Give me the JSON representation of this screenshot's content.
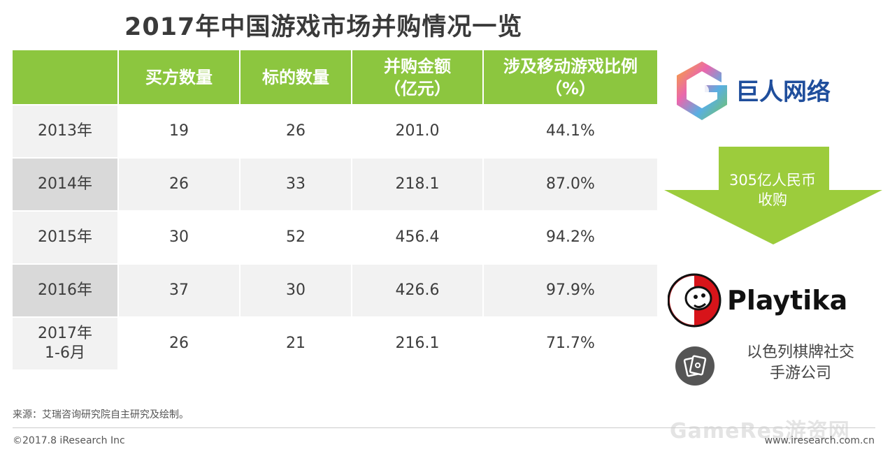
{
  "title": "2017年中国游戏市场并购情况一览",
  "table": {
    "headers": [
      {
        "line1": "",
        "line2": ""
      },
      {
        "line1": "买方数量",
        "line2": ""
      },
      {
        "line1": "标的数量",
        "line2": ""
      },
      {
        "line1": "并购金额",
        "line2": "（亿元）"
      },
      {
        "line1": "涉及移动游戏比例",
        "line2": "（%）"
      }
    ],
    "rows": [
      {
        "year": "2013年",
        "year2": "",
        "buyers": "19",
        "targets": "26",
        "amount": "201.0",
        "mobile_pct": "44.1%"
      },
      {
        "year": "2014年",
        "year2": "",
        "buyers": "26",
        "targets": "33",
        "amount": "218.1",
        "mobile_pct": "87.0%"
      },
      {
        "year": "2015年",
        "year2": "",
        "buyers": "30",
        "targets": "52",
        "amount": "456.4",
        "mobile_pct": "94.2%"
      },
      {
        "year": "2016年",
        "year2": "",
        "buyers": "37",
        "targets": "30",
        "amount": "426.6",
        "mobile_pct": "97.9%"
      },
      {
        "year": "2017年",
        "year2": "1-6月",
        "buyers": "26",
        "targets": "21",
        "amount": "216.1",
        "mobile_pct": "71.7%"
      }
    ]
  },
  "acquirer": {
    "name": "巨人网络"
  },
  "deal": {
    "line1": "305亿人民币",
    "line2": "收购"
  },
  "target": {
    "name": "Playtika",
    "desc_line1": "以色列棋牌社交",
    "desc_line2": "手游公司"
  },
  "footer": {
    "source": "来源：艾瑞咨询研究院自主研究及绘制。",
    "copyright": "©2017.8 iResearch Inc",
    "website": "www.iresearch.com.cn",
    "watermark": "GameRes游资网"
  },
  "colors": {
    "header_green": "#8cc63f",
    "arrow_green": "#9ccc3c",
    "playtika_red": "#d7141a"
  }
}
